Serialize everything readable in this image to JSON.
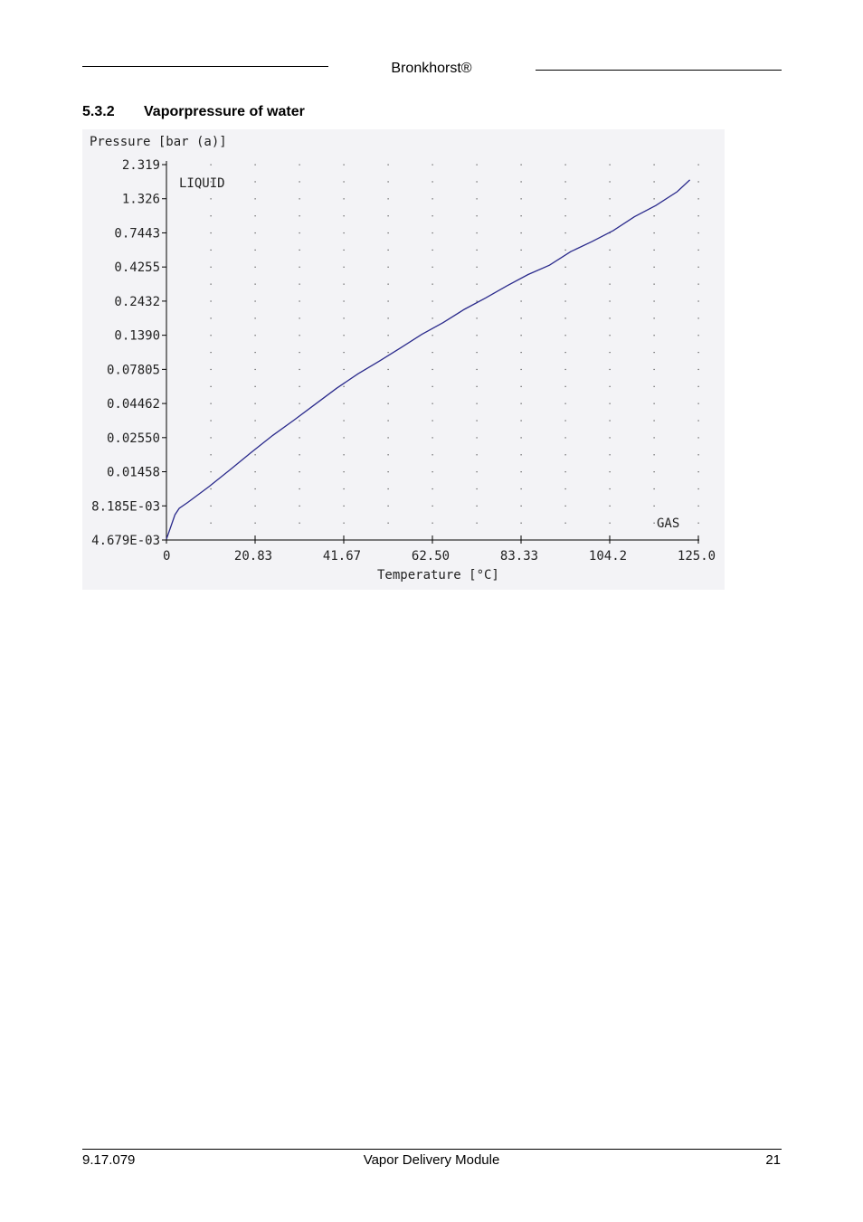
{
  "header": {
    "brand": "Bronkhorst®"
  },
  "section": {
    "number": "5.3.2",
    "title": "Vaporpressure of water"
  },
  "footer": {
    "doc_number": "9.17.079",
    "doc_title": "Vapor Delivery Module",
    "page": "21"
  },
  "chart_data": {
    "type": "line",
    "ylabel": "Pressure [bar (a)]",
    "xlabel": "Temperature [°C]",
    "x_ticks": [
      "0",
      "20.83",
      "41.67",
      "62.50",
      "83.33",
      "104.2",
      "125.0"
    ],
    "y_ticks": [
      "2.319",
      "1.326",
      "0.7443",
      "0.4255",
      "0.2432",
      "0.1390",
      "0.07805",
      "0.04462",
      "0.02550",
      "0.01458",
      "8.185E-03",
      "4.679E-03"
    ],
    "xlim": [
      0,
      125.0
    ],
    "ylim": [
      0.004679,
      2.319
    ],
    "y_scale": "log",
    "grid": "dotted",
    "annotations": [
      "LIQUID",
      "GAS"
    ],
    "colors": {
      "line": "#2a2a8c",
      "background": "#f3f3f6"
    },
    "series": [
      {
        "x": [
          0,
          1,
          2,
          3,
          5,
          10,
          15,
          20,
          25,
          30,
          35,
          40,
          45,
          50,
          55,
          60,
          65,
          70,
          75,
          80,
          85,
          90,
          95,
          100,
          105,
          110,
          115,
          120,
          123
        ],
        "y": [
          0.00475,
          0.0058,
          0.0071,
          0.0079,
          0.0087,
          0.0113,
          0.015,
          0.02,
          0.0264,
          0.034,
          0.0442,
          0.0575,
          0.073,
          0.09,
          0.112,
          0.14,
          0.17,
          0.212,
          0.256,
          0.312,
          0.377,
          0.44,
          0.55,
          0.65,
          0.78,
          0.98,
          1.18,
          1.48,
          1.8
        ]
      }
    ]
  }
}
